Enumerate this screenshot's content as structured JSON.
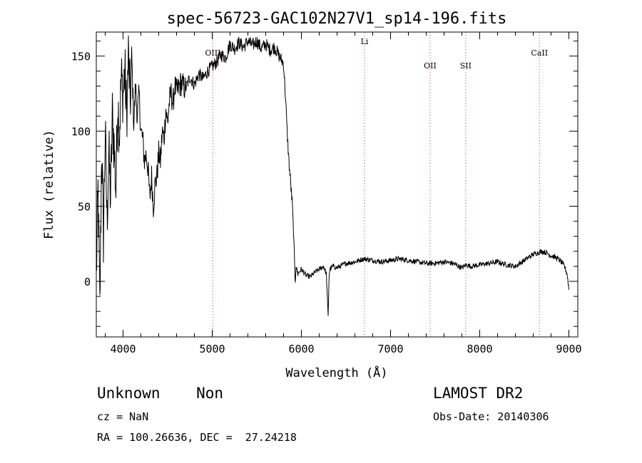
{
  "chart_data": {
    "type": "line",
    "title": "spec-56723-GAC102N27V1_sp14-196.fits",
    "xlabel": "Wavelength (Å)",
    "ylabel": "Flux (relative)",
    "xlim": [
      3700,
      9100
    ],
    "ylim": [
      -37,
      166
    ],
    "xticks": [
      4000,
      5000,
      6000,
      7000,
      8000,
      9000
    ],
    "yticks": [
      0,
      50,
      100,
      150
    ],
    "grid": false,
    "line_color": "#000000",
    "marker_color": "#cc3333",
    "lines": [
      {
        "name": "OIII",
        "x": 5007
      },
      {
        "name": "Li",
        "x": 6708
      },
      {
        "name": "OII",
        "x": 7444
      },
      {
        "name": "SII",
        "x": 7843
      },
      {
        "name": "CaII",
        "x": 8670
      }
    ],
    "spectrum": {
      "x": [
        3700,
        3720,
        3740,
        3760,
        3780,
        3800,
        3820,
        3840,
        3860,
        3880,
        3900,
        3920,
        3940,
        3960,
        3980,
        4000,
        4020,
        4040,
        4060,
        4080,
        4100,
        4120,
        4140,
        4160,
        4180,
        4200,
        4220,
        4240,
        4260,
        4280,
        4300,
        4320,
        4340,
        4360,
        4380,
        4400,
        4420,
        4440,
        4460,
        4480,
        4500,
        4520,
        4540,
        4560,
        4580,
        4600,
        4650,
        4700,
        4750,
        4800,
        4850,
        4900,
        4950,
        5000,
        5050,
        5100,
        5150,
        5200,
        5250,
        5300,
        5350,
        5400,
        5450,
        5500,
        5550,
        5600,
        5650,
        5700,
        5750,
        5800,
        5820,
        5840,
        5860,
        5880,
        5900,
        5920,
        5930,
        5940,
        5960,
        6000,
        6050,
        6100,
        6150,
        6200,
        6250,
        6280,
        6300,
        6310,
        6320,
        6350,
        6400,
        6500,
        6600,
        6700,
        6800,
        6900,
        7000,
        7100,
        7200,
        7300,
        7400,
        7500,
        7600,
        7700,
        7800,
        7850,
        7900,
        8000,
        8100,
        8200,
        8300,
        8400,
        8500,
        8600,
        8700,
        8750,
        8800,
        8850,
        8900,
        8950,
        8980,
        9000
      ],
      "y": [
        5,
        60,
        -20,
        90,
        30,
        100,
        40,
        85,
        55,
        110,
        90,
        60,
        120,
        100,
        135,
        125,
        140,
        110,
        150,
        120,
        145,
        105,
        130,
        110,
        125,
        100,
        95,
        80,
        85,
        75,
        55,
        70,
        50,
        65,
        70,
        85,
        80,
        100,
        95,
        115,
        105,
        120,
        125,
        118,
        130,
        126,
        132,
        128,
        136,
        131,
        138,
        135,
        140,
        143,
        146,
        151,
        149,
        158,
        155,
        159,
        156,
        160,
        157,
        160,
        155,
        158,
        154,
        156,
        150,
        145,
        125,
        100,
        80,
        65,
        50,
        20,
        -2,
        10,
        5,
        8,
        4,
        3,
        6,
        8,
        10,
        5,
        -24,
        4,
        8,
        10,
        9,
        12,
        13,
        15,
        14,
        13,
        14,
        15,
        14,
        13,
        12,
        12,
        13,
        12,
        9,
        11,
        10,
        11,
        12,
        13,
        11,
        10,
        14,
        18,
        20,
        19,
        17,
        16,
        14,
        10,
        5,
        -5
      ]
    }
  },
  "info": {
    "class_text": "Unknown    Non",
    "survey": "LAMOST DR2",
    "cz": "cz = NaN",
    "obs_date": "Obs-Date: 20140306",
    "coords": "RA = 100.26636, DEC =  27.24218"
  }
}
